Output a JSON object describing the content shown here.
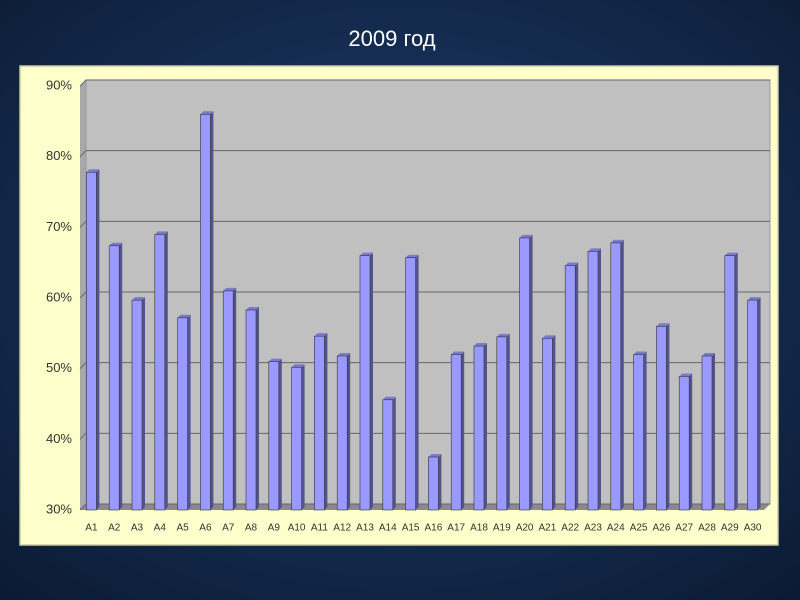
{
  "chart_data": {
    "type": "bar",
    "title": "2009 год",
    "categories": [
      "A1",
      "A2",
      "A3",
      "A4",
      "A5",
      "A6",
      "A7",
      "A8",
      "A9",
      "A10",
      "A11",
      "A12",
      "A13",
      "A14",
      "A15",
      "A16",
      "A17",
      "A18",
      "A19",
      "A20",
      "A21",
      "A22",
      "A23",
      "A24",
      "A25",
      "A26",
      "A27",
      "A28",
      "A29",
      "A30"
    ],
    "values": [
      77.8,
      67.4,
      59.7,
      69.0,
      57.2,
      86.0,
      61.0,
      58.3,
      51.0,
      50.2,
      54.6,
      51.8,
      66.0,
      45.6,
      65.7,
      37.5,
      52.0,
      53.2,
      54.5,
      68.5,
      54.3,
      64.6,
      66.6,
      67.8,
      52.0,
      56.0,
      48.9,
      51.8,
      66.0,
      59.7
    ],
    "color": "#9999ff",
    "ylim": [
      30,
      90
    ],
    "yticks": [
      {
        "value": 30,
        "label": "30%"
      },
      {
        "value": 40,
        "label": "40%"
      },
      {
        "value": 50,
        "label": "50%"
      },
      {
        "value": 60,
        "label": "60%"
      },
      {
        "value": 70,
        "label": "70%"
      },
      {
        "value": 80,
        "label": "80%"
      },
      {
        "value": 90,
        "label": "90%"
      }
    ],
    "grid": true
  }
}
